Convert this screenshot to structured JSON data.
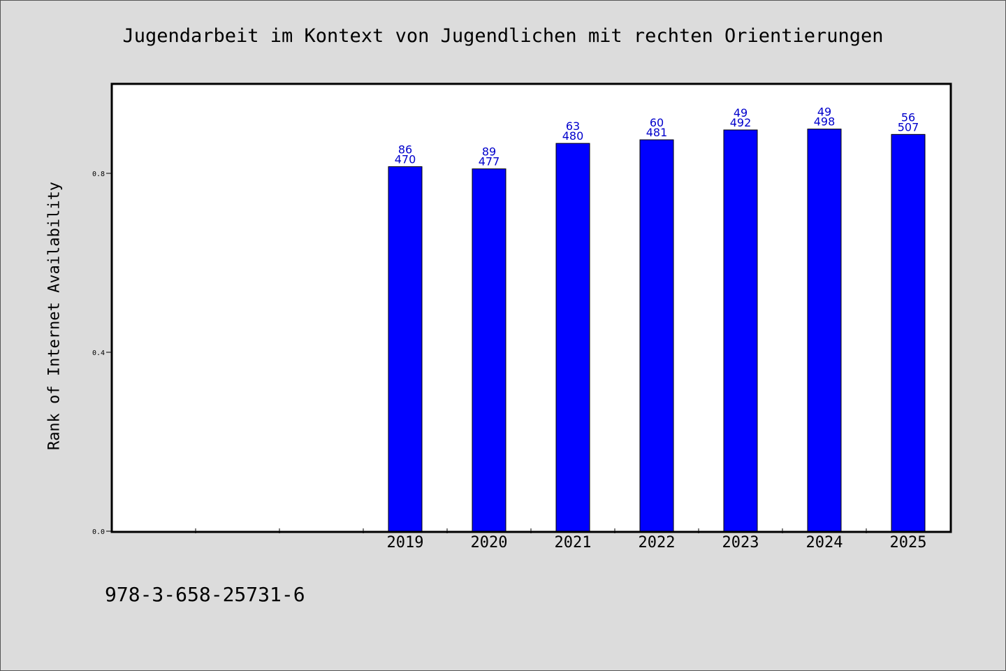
{
  "chart_data": {
    "type": "bar",
    "title": "Jugendarbeit im Kontext von Jugendlichen mit rechten Orientierungen",
    "ylabel": "Rank of Internet Availability",
    "xlabel": "",
    "ylim": [
      0,
      1.0
    ],
    "yticks": [
      "0.0",
      "0.4",
      "0.8"
    ],
    "categories": [
      "",
      "",
      "",
      "2019",
      "2020",
      "2021",
      "2022",
      "2023",
      "2024",
      "2025"
    ],
    "values": [
      null,
      null,
      null,
      0.815,
      0.81,
      0.867,
      0.875,
      0.897,
      0.899,
      0.887
    ],
    "label_top": [
      "",
      "",
      "",
      "86",
      "89",
      "63",
      "60",
      "49",
      "49",
      "56"
    ],
    "label_bottom": [
      "",
      "",
      "",
      "470",
      "477",
      "480",
      "481",
      "492",
      "498",
      "507"
    ],
    "bar_color": "#0000ff",
    "label_color": "#0000cc",
    "grid": false
  },
  "footer": "978-3-658-25731-6"
}
